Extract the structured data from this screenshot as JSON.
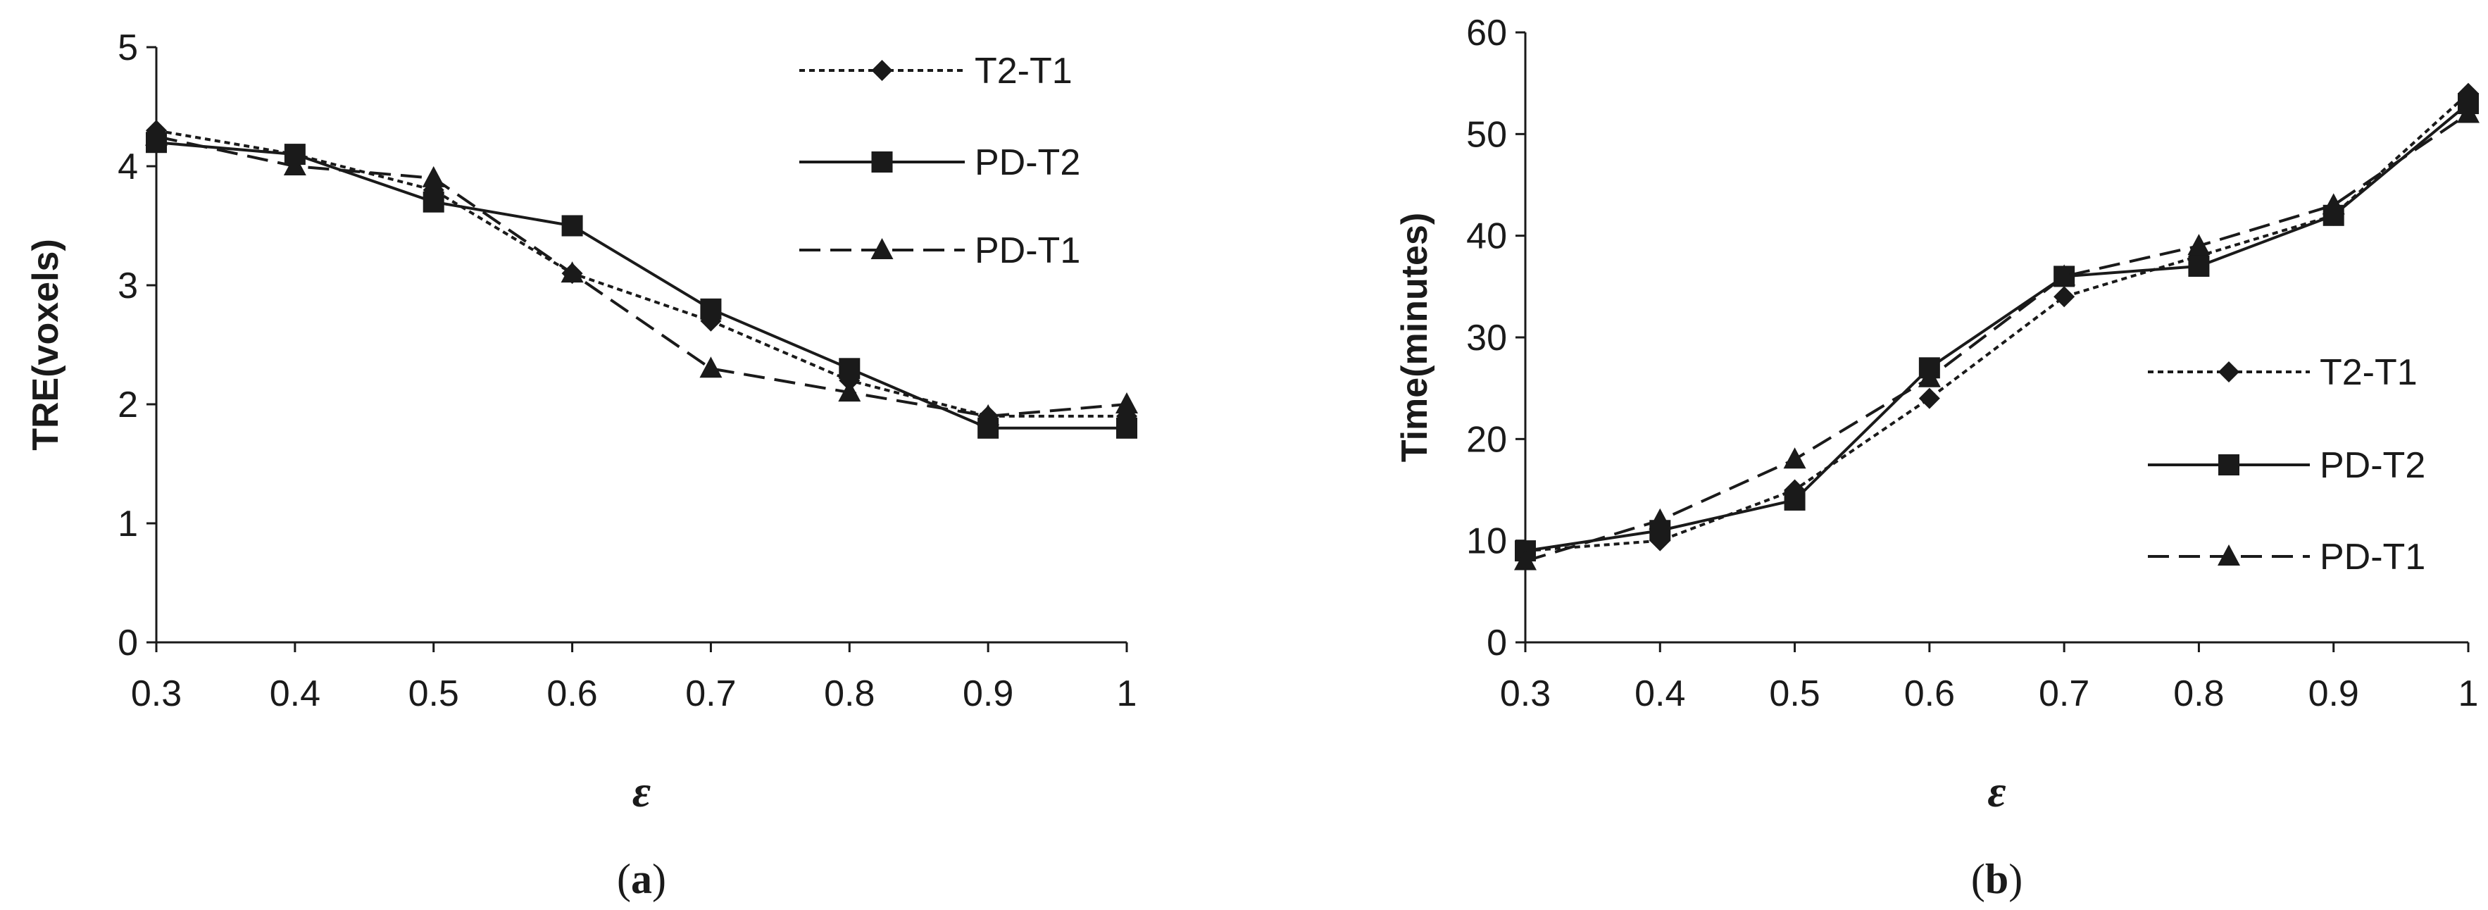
{
  "chart_data": [
    {
      "type": "line",
      "panel": "a",
      "caption": "(a)",
      "caption_letter": "a",
      "xlabel": "ε",
      "ylabel": "TRE(voxels)",
      "x": [
        "0.3",
        "0.4",
        "0.5",
        "0.6",
        "0.7",
        "0.8",
        "0.9",
        "1"
      ],
      "x_values": [
        0.3,
        0.4,
        0.5,
        0.6,
        0.7,
        0.8,
        0.9,
        1.0
      ],
      "ylim": [
        0,
        5
      ],
      "yticks": [
        "0",
        "1",
        "2",
        "3",
        "4",
        "5"
      ],
      "legend_position": "top-right",
      "series": [
        {
          "name": "T2-T1",
          "style": "dotted",
          "marker": "diamond",
          "values": [
            4.3,
            4.1,
            3.8,
            3.1,
            2.7,
            2.2,
            1.9,
            1.9
          ]
        },
        {
          "name": "PD-T2",
          "style": "solid",
          "marker": "square",
          "values": [
            4.2,
            4.1,
            3.7,
            3.5,
            2.8,
            2.3,
            1.8,
            1.8
          ]
        },
        {
          "name": "PD-T1",
          "style": "dashed",
          "marker": "triangle",
          "values": [
            4.25,
            4.0,
            3.9,
            3.1,
            2.3,
            2.1,
            1.9,
            2.0
          ]
        }
      ]
    },
    {
      "type": "line",
      "panel": "b",
      "caption": "(b)",
      "caption_letter": "b",
      "xlabel": "ε",
      "ylabel": "Time(minutes)",
      "x": [
        "0.3",
        "0.4",
        "0.5",
        "0.6",
        "0.7",
        "0.8",
        "0.9",
        "1"
      ],
      "x_values": [
        0.3,
        0.4,
        0.5,
        0.6,
        0.7,
        0.8,
        0.9,
        1.0
      ],
      "ylim": [
        0,
        60
      ],
      "yticks": [
        "0",
        "10",
        "20",
        "30",
        "40",
        "50",
        "60"
      ],
      "legend_position": "bottom-right",
      "series": [
        {
          "name": "T2-T1",
          "style": "dotted",
          "marker": "diamond",
          "values": [
            9,
            10,
            15,
            24,
            34,
            38,
            42,
            54
          ]
        },
        {
          "name": "PD-T2",
          "style": "solid",
          "marker": "square",
          "values": [
            9,
            11,
            14,
            27,
            36,
            37,
            42,
            53
          ]
        },
        {
          "name": "PD-T1",
          "style": "dashed",
          "marker": "triangle",
          "values": [
            8,
            12,
            18,
            26,
            36,
            39,
            43,
            52
          ]
        }
      ]
    }
  ]
}
